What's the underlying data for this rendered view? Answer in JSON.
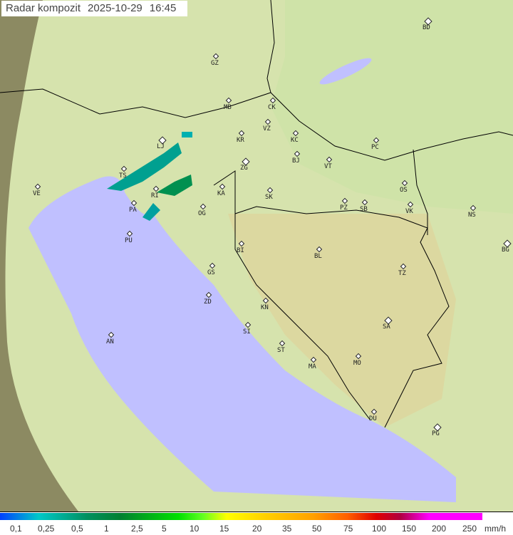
{
  "title": {
    "label": "Radar kompozit",
    "date": "2025-10-29",
    "time": "16:45"
  },
  "colors": {
    "sea": "#c0c0ff",
    "land": "#d8e6b0",
    "outside_range": "#8a8a60",
    "border": "#000000",
    "rain_light": "#00a0a0",
    "rain_mid": "#008040"
  },
  "cities": [
    "BD",
    "GZ",
    "MB",
    "CK",
    "VZ",
    "KR",
    "KC",
    "LJ",
    "PC",
    "BJ",
    "VT",
    "ZG",
    "TS",
    "OS",
    "KA",
    "VE",
    "SK",
    "RI",
    "PZ",
    "SB",
    "VK",
    "NS",
    "PA",
    "OG",
    "PU",
    "BI",
    "BL",
    "BG",
    "GS",
    "TZ",
    "ZD",
    "KN",
    "SA",
    "SI",
    "AN",
    "ST",
    "MA",
    "MO",
    "DU",
    "PG"
  ],
  "legend": {
    "ticks": [
      "0,1",
      "0,25",
      "0,5",
      "1",
      "2,5",
      "5",
      "10",
      "15",
      "20",
      "35",
      "50",
      "75",
      "100",
      "150",
      "200",
      "250"
    ],
    "unit": "mm/h"
  }
}
